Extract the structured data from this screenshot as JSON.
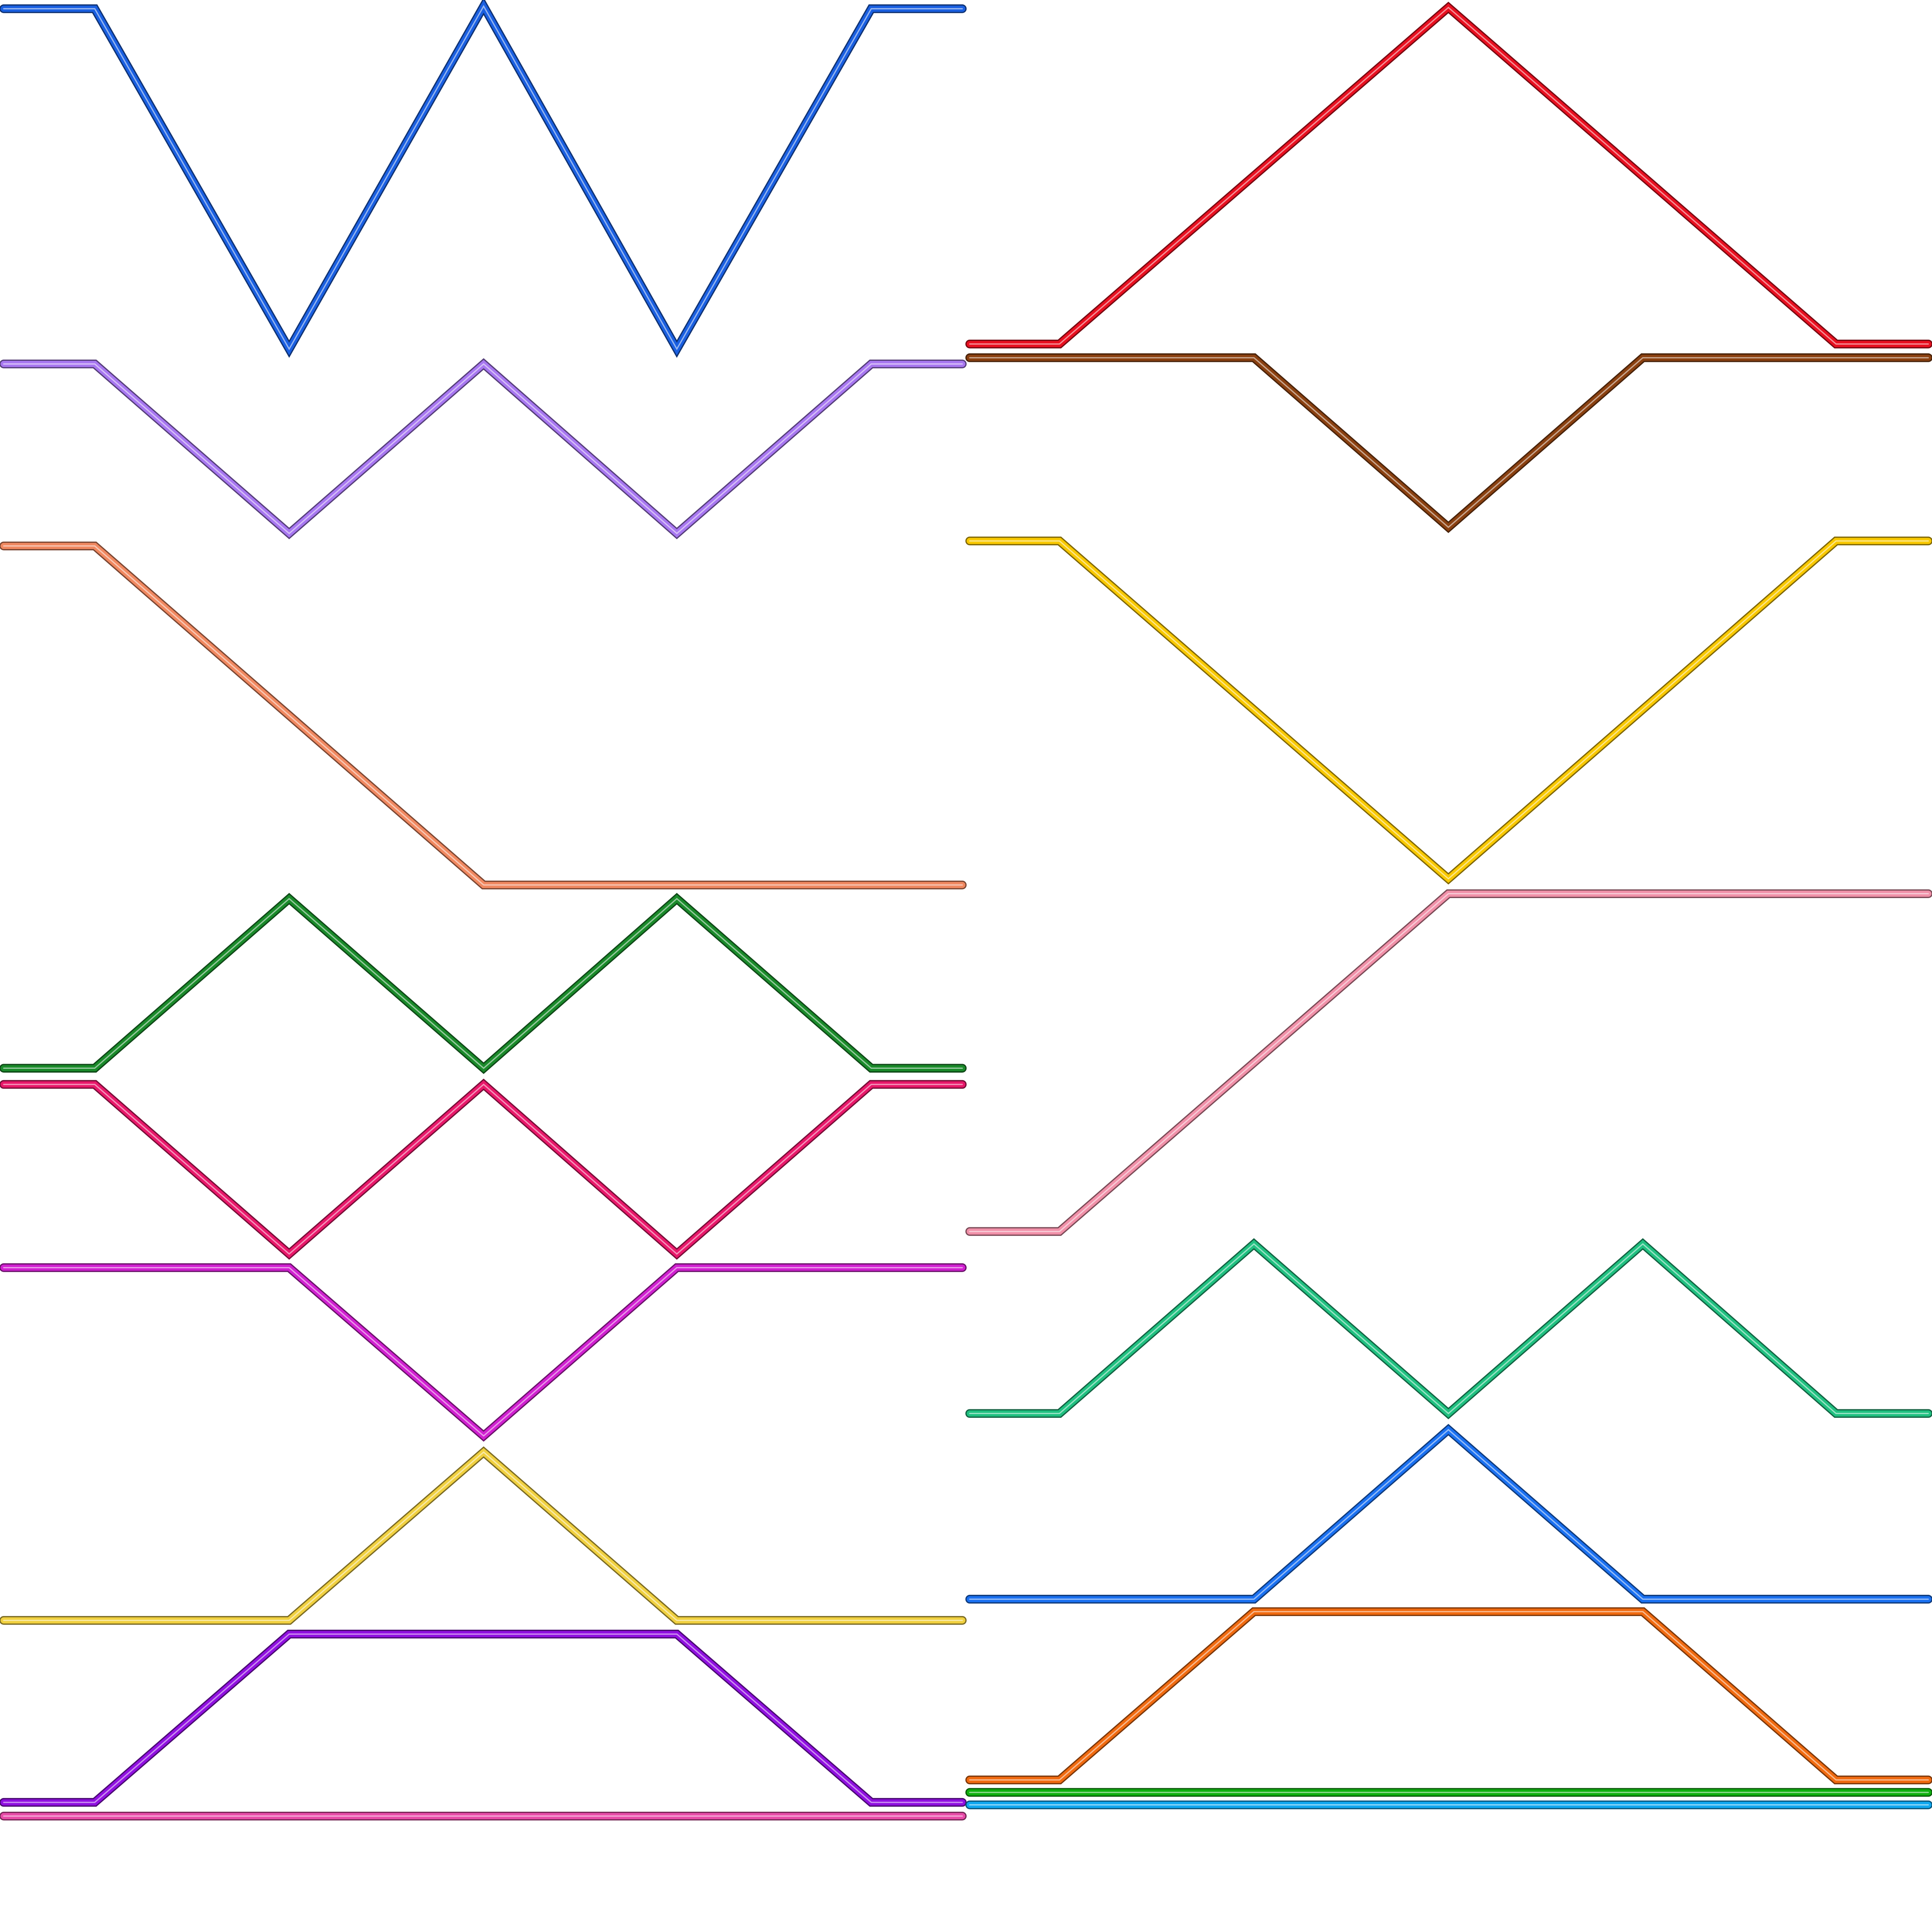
{
  "shapes": [
    {
      "color": "#1a5fe0"
    },
    {
      "color": "#a777f0"
    },
    {
      "color": "#f08860"
    },
    {
      "color": "#1a8a2a"
    },
    {
      "color": "#e8186a"
    },
    {
      "color": "#d020d0"
    },
    {
      "color": "#f0d040"
    },
    {
      "color": "#9010e0"
    },
    {
      "color": "#e84aa8"
    },
    {
      "color": "#e81020"
    },
    {
      "color": "#8a4010"
    },
    {
      "color": "#f8c800"
    },
    {
      "color": "#f090a8"
    },
    {
      "color": "#20c080"
    },
    {
      "color": "#1a70f0"
    },
    {
      "color": "#f06a10"
    },
    {
      "color": "#10b010"
    },
    {
      "color": "#10a8f0"
    }
  ]
}
